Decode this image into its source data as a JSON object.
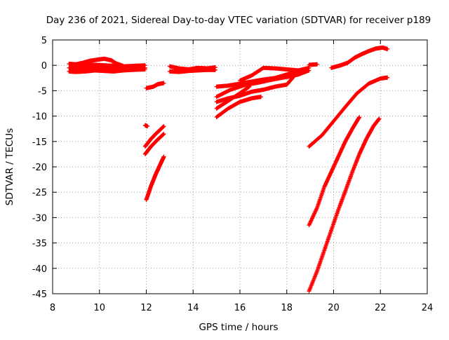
{
  "chart_data": {
    "type": "scatter",
    "title": "Day 236 of 2021, Sidereal Day-to-day VTEC variation (SDTVAR) for receiver p189",
    "xlabel": "GPS time / hours",
    "ylabel": "SDTVAR / TECUs",
    "xlim": [
      8,
      24
    ],
    "ylim": [
      -45,
      5
    ],
    "x_ticks": [
      "8",
      "10",
      "12",
      "14",
      "16",
      "18",
      "20",
      "22",
      "24"
    ],
    "y_ticks": [
      "5",
      "0",
      "-5",
      "-10",
      "-15",
      "-20",
      "-25",
      "-30",
      "-35",
      "-40",
      "-45"
    ],
    "grid": true,
    "marker": "+",
    "color": "#ff0000",
    "series": [
      {
        "x": [
          8.7,
          9.0,
          9.3,
          9.6,
          10.0,
          10.3,
          10.6,
          11.0,
          11.4,
          11.8,
          11.95
        ],
        "y": [
          -0.5,
          -0.5,
          -0.5,
          -0.5,
          -0.5,
          -0.5,
          -0.6,
          -0.5,
          -0.5,
          -0.4,
          -0.5
        ]
      },
      {
        "x": [
          8.7,
          9.0,
          9.4,
          9.8,
          10.2,
          10.6,
          11.0,
          11.4,
          11.95
        ],
        "y": [
          -1.2,
          -1.3,
          -1.2,
          -1.0,
          -1.1,
          -1.2,
          -1.0,
          -0.9,
          -0.8
        ]
      },
      {
        "x": [
          9.0,
          9.3,
          9.6,
          9.9,
          10.2,
          10.5,
          10.7,
          11.0
        ],
        "y": [
          0.2,
          0.5,
          0.9,
          1.1,
          1.3,
          1.0,
          0.4,
          -0.1
        ]
      },
      {
        "x": [
          8.7,
          9.0,
          9.4,
          9.8,
          10.2,
          10.6,
          11.0,
          11.5,
          11.95
        ],
        "y": [
          0.3,
          0.2,
          0.1,
          0.1,
          0.0,
          -0.1,
          -0.2,
          -0.1,
          0.0
        ]
      },
      {
        "x": [
          11.95,
          12.05
        ],
        "y": [
          -11.8,
          -12.0
        ]
      },
      {
        "x": [
          12.0,
          12.3,
          12.5,
          12.75
        ],
        "y": [
          -4.5,
          -4.2,
          -3.7,
          -3.5
        ]
      },
      {
        "x": [
          11.95,
          12.2,
          12.45,
          12.75
        ],
        "y": [
          -16.0,
          -14.5,
          -13.3,
          -12.0
        ]
      },
      {
        "x": [
          11.95,
          12.2,
          12.45,
          12.75
        ],
        "y": [
          -17.5,
          -16.0,
          -14.8,
          -13.5
        ]
      },
      {
        "x": [
          12.0,
          12.2,
          12.4,
          12.6,
          12.75
        ],
        "y": [
          -26.5,
          -23.8,
          -21.5,
          -19.5,
          -18.0
        ]
      },
      {
        "x": [
          13.0,
          13.4,
          13.8,
          14.2,
          14.6,
          14.95
        ],
        "y": [
          -0.2,
          -0.6,
          -0.8,
          -0.5,
          -0.6,
          -0.4
        ]
      },
      {
        "x": [
          13.0,
          13.4,
          13.8,
          14.2,
          14.6,
          14.95
        ],
        "y": [
          -1.2,
          -1.3,
          -1.1,
          -1.0,
          -0.9,
          -0.9
        ]
      },
      {
        "x": [
          15.0,
          15.5,
          16.0,
          16.5,
          17.0,
          17.5,
          18.0,
          18.5
        ],
        "y": [
          -4.2,
          -4.0,
          -3.6,
          -3.2,
          -2.8,
          -2.5,
          -1.8,
          -1.2
        ]
      },
      {
        "x": [
          16.0,
          16.5,
          17.0,
          17.5,
          18.0,
          18.5,
          18.95
        ],
        "y": [
          -3.0,
          -2.0,
          -0.5,
          -0.6,
          -0.8,
          -1.0,
          -0.5
        ]
      },
      {
        "x": [
          15.0,
          15.6,
          16.2,
          16.8,
          17.4,
          18.0,
          18.5,
          18.95
        ],
        "y": [
          -6.2,
          -4.8,
          -3.9,
          -3.4,
          -2.8,
          -2.3,
          -1.8,
          -1.0
        ]
      },
      {
        "x": [
          15.0,
          15.5,
          16.0,
          16.5,
          17.0,
          17.5,
          18.0,
          18.3
        ],
        "y": [
          -7.2,
          -6.5,
          -6.0,
          -5.2,
          -4.8,
          -4.2,
          -3.8,
          -2.2
        ]
      },
      {
        "x": [
          15.0,
          15.5,
          16.0,
          16.5,
          16.9
        ],
        "y": [
          -10.2,
          -8.5,
          -7.2,
          -6.5,
          -6.2
        ]
      },
      {
        "x": [
          15.0,
          15.5,
          16.0,
          16.4
        ],
        "y": [
          -8.5,
          -7.0,
          -5.5,
          -4.2
        ]
      },
      {
        "x": [
          18.95,
          19.3
        ],
        "y": [
          0.1,
          0.2
        ]
      },
      {
        "x": [
          19.9,
          20.3,
          20.6,
          20.9,
          21.2,
          21.5,
          21.8,
          22.1,
          22.3
        ],
        "y": [
          -0.5,
          0.0,
          0.5,
          1.5,
          2.2,
          2.8,
          3.3,
          3.5,
          3.2
        ]
      },
      {
        "x": [
          18.95,
          19.5,
          20.0,
          20.5,
          21.0,
          21.5,
          22.0,
          22.3
        ],
        "y": [
          -16.0,
          -13.8,
          -11.0,
          -8.2,
          -5.5,
          -3.6,
          -2.6,
          -2.4
        ]
      },
      {
        "x": [
          18.95,
          19.3,
          19.6,
          19.9,
          20.2,
          20.5,
          20.8,
          21.1
        ],
        "y": [
          -31.5,
          -28.0,
          -24.0,
          -21.0,
          -18.0,
          -15.0,
          -12.5,
          -10.2
        ]
      },
      {
        "x": [
          18.95,
          19.3,
          19.6,
          19.9,
          20.2,
          20.5,
          20.8,
          21.1,
          21.4,
          21.7,
          21.95
        ],
        "y": [
          -44.5,
          -40.5,
          -36.5,
          -32.5,
          -28.5,
          -24.8,
          -21.0,
          -17.5,
          -14.5,
          -12.0,
          -10.5
        ]
      }
    ]
  }
}
